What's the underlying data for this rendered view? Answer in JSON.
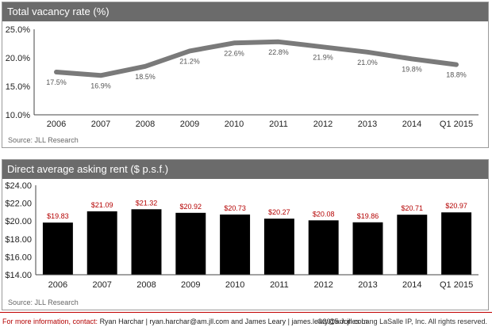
{
  "chart_data": [
    {
      "type": "line",
      "title": "Total vacancy rate (%)",
      "source": "Source: JLL Research",
      "categories": [
        "2006",
        "2007",
        "2008",
        "2009",
        "2010",
        "2011",
        "2012",
        "2013",
        "2014",
        "Q1 2015"
      ],
      "values": [
        17.5,
        16.9,
        18.5,
        21.2,
        22.6,
        22.8,
        21.9,
        21.0,
        19.8,
        18.8
      ],
      "value_labels": [
        "17.5%",
        "16.9%",
        "18.5%",
        "21.2%",
        "22.6%",
        "22.8%",
        "21.9%",
        "21.0%",
        "19.8%",
        "18.8%"
      ],
      "yticks": [
        "10.0%",
        "15.0%",
        "20.0%",
        "25.0%"
      ],
      "ytick_values": [
        10,
        15,
        20,
        25
      ],
      "ylim": [
        10,
        25
      ],
      "grid": false,
      "colors": {
        "line": "#7a7a7a",
        "label": "#555555"
      }
    },
    {
      "type": "bar",
      "title": "Direct average asking rent ($ p.s.f.)",
      "source": "Source: JLL Research",
      "categories": [
        "2006",
        "2007",
        "2008",
        "2009",
        "2010",
        "2011",
        "2012",
        "2013",
        "2014",
        "Q1 2015"
      ],
      "values": [
        19.83,
        21.09,
        21.32,
        20.92,
        20.73,
        20.27,
        20.08,
        19.86,
        20.71,
        20.97
      ],
      "value_labels": [
        "$19.83",
        "$21.09",
        "$21.32",
        "$20.92",
        "$20.73",
        "$20.27",
        "$20.08",
        "$19.86",
        "$20.71",
        "$20.97"
      ],
      "yticks": [
        "$14.00",
        "$16.00",
        "$18.00",
        "$20.00",
        "$22.00",
        "$24.00"
      ],
      "ytick_values": [
        14,
        16,
        18,
        20,
        22,
        24
      ],
      "ylim": [
        14,
        24
      ],
      "grid": false,
      "colors": {
        "bar": "#000000",
        "label": "#b40000"
      }
    }
  ],
  "footer": {
    "prefix": "For more information, contact:",
    "contacts": "Ryan Harchar | ryan.harchar@am.jll.com and James Leary | james.leary@am.jll.com",
    "copyright": "©2015 Jones Lang LaSalle IP, Inc. All rights reserved."
  }
}
